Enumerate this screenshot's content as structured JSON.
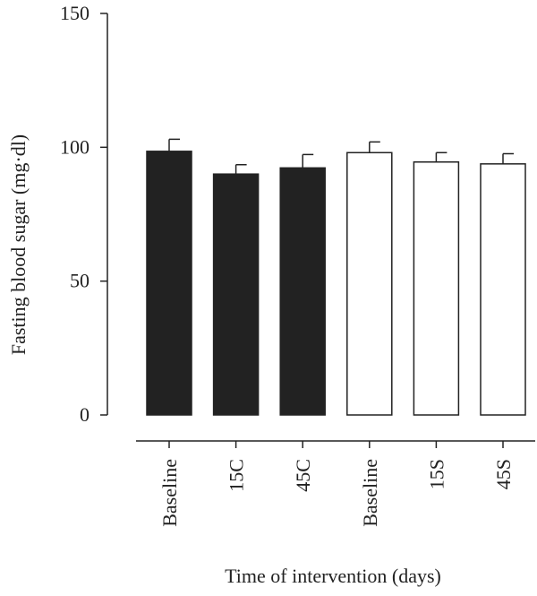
{
  "chart_data": {
    "type": "bar",
    "categories": [
      "Baseline",
      "15C",
      "45C",
      "Baseline",
      "15S",
      "45S"
    ],
    "values": [
      98.5,
      90,
      92.3,
      98,
      94.5,
      93.8
    ],
    "errors": [
      4.5,
      3.5,
      5,
      4,
      3.5,
      3.8
    ],
    "bar_fills": [
      "#222222",
      "#222222",
      "#222222",
      "#ffffff",
      "#ffffff",
      "#ffffff"
    ],
    "bar_stroke": "#222222",
    "ylabel": "Fasting blood sugar (mg·dl)",
    "xlabel": "Time of intervention (days)",
    "ylim": [
      0,
      150
    ],
    "yticks": [
      0,
      50,
      100,
      150
    ],
    "grid": false,
    "legend": "none"
  }
}
